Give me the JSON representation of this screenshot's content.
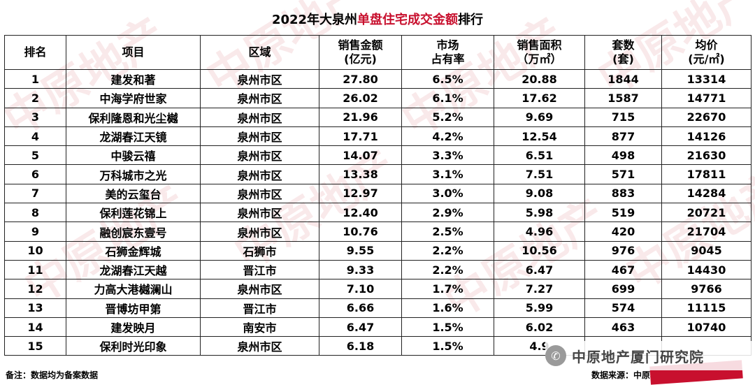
{
  "title": {
    "prefix": "2022年大泉州",
    "highlight": "单盘住宅成交金额",
    "suffix": "排行"
  },
  "headers": [
    "排名",
    "项目",
    "区域",
    "销售金额\n(亿元)",
    "市场\n占有率",
    "销售面积\n（万㎡）",
    "套数\n(套)",
    "均价\n(元/㎡)"
  ],
  "rows": [
    [
      "1",
      "建发和著",
      "泉州市区",
      "27.80",
      "6.5%",
      "20.88",
      "1844",
      "13314"
    ],
    [
      "2",
      "中海学府世家",
      "泉州市区",
      "26.02",
      "6.1%",
      "17.62",
      "1587",
      "14771"
    ],
    [
      "3",
      "保利隆恩和光尘樾",
      "泉州市区",
      "21.96",
      "5.2%",
      "9.69",
      "715",
      "22670"
    ],
    [
      "4",
      "龙湖春江天镜",
      "泉州市区",
      "17.71",
      "4.2%",
      "12.54",
      "877",
      "14126"
    ],
    [
      "5",
      "中骏云禧",
      "泉州市区",
      "14.07",
      "3.3%",
      "6.51",
      "498",
      "21630"
    ],
    [
      "6",
      "万科城市之光",
      "泉州市区",
      "13.38",
      "3.1%",
      "7.51",
      "571",
      "17811"
    ],
    [
      "7",
      "美的云玺台",
      "泉州市区",
      "12.97",
      "3.0%",
      "9.08",
      "883",
      "14284"
    ],
    [
      "8",
      "保利莲花锦上",
      "泉州市区",
      "12.40",
      "2.9%",
      "5.98",
      "519",
      "20721"
    ],
    [
      "9",
      "融创宸东壹号",
      "泉州市区",
      "10.76",
      "2.5%",
      "4.96",
      "420",
      "21704"
    ],
    [
      "10",
      "石狮金辉城",
      "石狮市",
      "9.55",
      "2.2%",
      "10.56",
      "976",
      "9045"
    ],
    [
      "11",
      "龙湖春江天越",
      "晋江市",
      "9.33",
      "2.2%",
      "6.47",
      "467",
      "14430"
    ],
    [
      "12",
      "力高大港樾澜山",
      "泉州市区",
      "7.10",
      "1.7%",
      "7.27",
      "699",
      "9766"
    ],
    [
      "13",
      "晋博坊甲第",
      "晋江市",
      "6.66",
      "1.6%",
      "5.99",
      "574",
      "11115"
    ],
    [
      "14",
      "建发映月",
      "南安市",
      "6.47",
      "1.5%",
      "6.02",
      "463",
      "10740"
    ],
    [
      "15",
      "保利时光印象",
      "泉州市区",
      "6.18",
      "1.5%",
      "4.9",
      "",
      ""
    ]
  ],
  "footer": {
    "note": "备注：数据均为备案数据",
    "source": "数据来源：中原地产厦门研究院数据库"
  },
  "badge": {
    "name": "中原地产厦门研究院",
    "icon": "wechat-icon"
  },
  "watermark": "中原地产",
  "colors": {
    "highlight": "#c8102e",
    "watermark": "#c8283240"
  }
}
